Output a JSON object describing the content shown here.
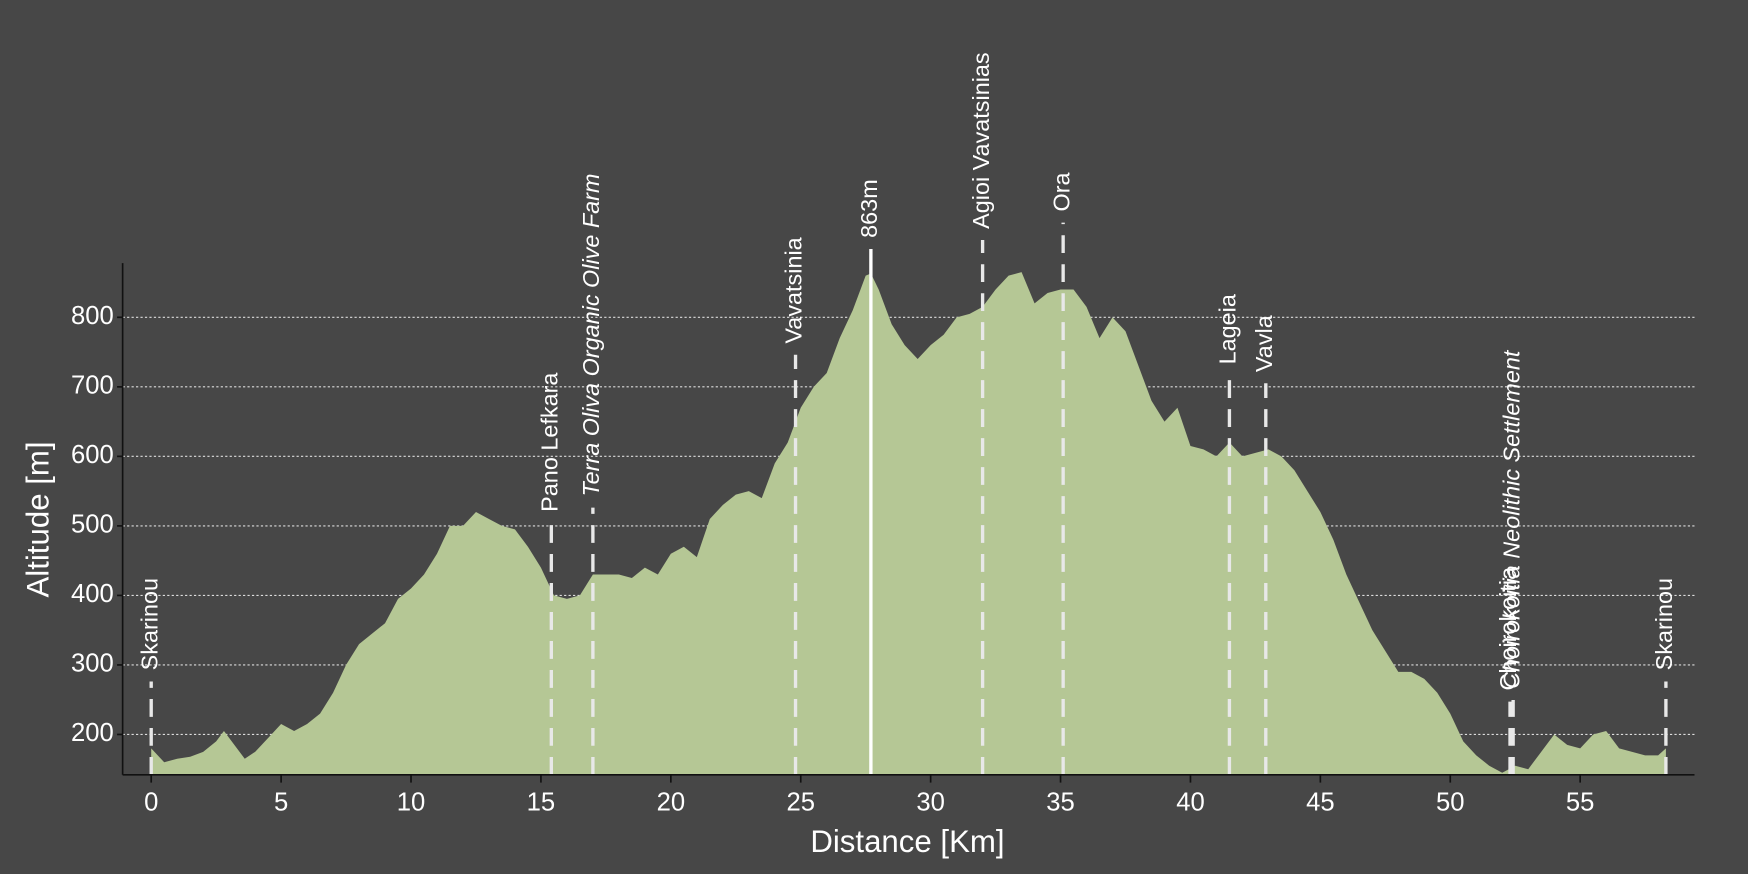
{
  "chart_data": {
    "type": "area",
    "xlabel": "Distance [Km]",
    "ylabel": "Altitude [m]",
    "color": "#b5c795",
    "xlim": [
      -1.1,
      59.4
    ],
    "ylim": [
      142,
      878
    ],
    "xticks": [
      0,
      5,
      10,
      15,
      20,
      25,
      30,
      35,
      40,
      45,
      50,
      55
    ],
    "yticks": [
      200,
      300,
      400,
      500,
      600,
      700,
      800
    ],
    "grid": true,
    "x": [
      0,
      0.5,
      1,
      1.5,
      2,
      2.5,
      2.8,
      3.2,
      3.6,
      4,
      4.5,
      5,
      5.5,
      6,
      6.5,
      7,
      7.5,
      8,
      8.5,
      9,
      9.5,
      10,
      10.5,
      11,
      11.5,
      12,
      12.5,
      13,
      13.5,
      14,
      14.5,
      15,
      15.5,
      16,
      16.5,
      17,
      17.5,
      18,
      18.5,
      19,
      19.5,
      20,
      20.5,
      21,
      21.5,
      22,
      22.5,
      23,
      23.5,
      24,
      24.5,
      25,
      25.5,
      26,
      26.5,
      27,
      27.5,
      27.7,
      28,
      28.5,
      29,
      29.5,
      30,
      30.5,
      31,
      31.5,
      32,
      32.5,
      33,
      33.5,
      34,
      34.5,
      35,
      35.5,
      36,
      36.5,
      37,
      37.5,
      38,
      38.5,
      39,
      39.5,
      40,
      40.5,
      41,
      41.5,
      42,
      42.5,
      43,
      43.5,
      44,
      44.5,
      45,
      45.5,
      46,
      46.5,
      47,
      47.5,
      48,
      48.5,
      49,
      49.5,
      50,
      50.5,
      51,
      51.5,
      52,
      52.5,
      53,
      53.5,
      54,
      54.5,
      55,
      55.5,
      56,
      56.5,
      57,
      57.5,
      58,
      58.3
    ],
    "values": [
      180,
      160,
      165,
      168,
      175,
      190,
      205,
      185,
      165,
      175,
      195,
      215,
      205,
      215,
      230,
      260,
      300,
      330,
      345,
      360,
      395,
      410,
      430,
      460,
      500,
      500,
      520,
      510,
      500,
      495,
      470,
      440,
      400,
      395,
      400,
      430,
      430,
      430,
      425,
      440,
      430,
      460,
      470,
      455,
      510,
      530,
      545,
      550,
      540,
      590,
      620,
      670,
      700,
      720,
      770,
      810,
      860,
      863,
      840,
      790,
      760,
      740,
      760,
      775,
      800,
      805,
      815,
      840,
      860,
      865,
      820,
      835,
      840,
      840,
      815,
      770,
      800,
      780,
      730,
      680,
      650,
      670,
      615,
      610,
      600,
      620,
      600,
      605,
      610,
      600,
      580,
      550,
      520,
      480,
      430,
      390,
      350,
      320,
      290,
      290,
      280,
      260,
      230,
      190,
      170,
      155,
      145,
      155,
      150,
      175,
      200,
      185,
      180,
      200,
      205,
      180,
      175,
      170,
      170,
      180
    ],
    "annotations": [
      {
        "text": "Skarinou",
        "x": 0,
        "italic": false,
        "style": "dashed"
      },
      {
        "text": "Pano Lefkara",
        "x": 15.4,
        "italic": false,
        "style": "dashed"
      },
      {
        "text": "Terra Oliva Organic Olive Farm",
        "x": 17.0,
        "italic": true,
        "style": "dashed"
      },
      {
        "text": "Vavatsinia",
        "x": 24.8,
        "italic": false,
        "style": "dashed"
      },
      {
        "text": "863m",
        "x": 27.7,
        "italic": false,
        "style": "solid"
      },
      {
        "text": "Agioi Vavatsinias",
        "x": 32.0,
        "italic": false,
        "style": "dashed"
      },
      {
        "text": "Ora",
        "x": 35.1,
        "italic": false,
        "style": "dashed"
      },
      {
        "text": "Lageia",
        "x": 41.5,
        "italic": false,
        "style": "dashed"
      },
      {
        "text": "Vavla",
        "x": 42.9,
        "italic": false,
        "style": "dashed"
      },
      {
        "text": "Choirokoitia",
        "x": 52.3,
        "italic": false,
        "style": "dashed"
      },
      {
        "text": "Choirokoitia Neolithic Settlement",
        "x": 52.42,
        "italic": true,
        "style": "dashed"
      },
      {
        "text": "Skarinou",
        "x": 58.3,
        "italic": false,
        "style": "dashed"
      }
    ]
  }
}
